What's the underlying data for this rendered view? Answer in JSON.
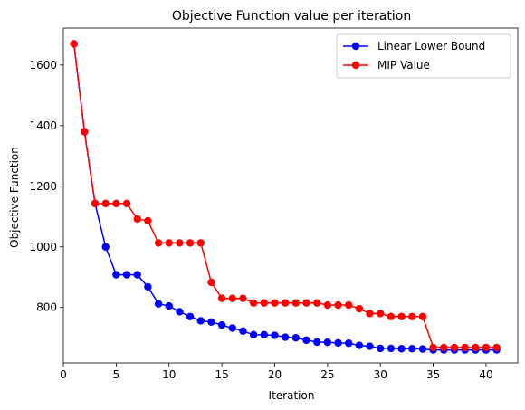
{
  "chart_data": {
    "type": "line",
    "title": "Objective Function value per iteration",
    "xlabel": "Iteration",
    "ylabel": "Objective Function",
    "xlim": [
      -0.0,
      43.0
    ],
    "ylim": [
      617,
      1722
    ],
    "xticks": [
      0,
      5,
      10,
      15,
      20,
      25,
      30,
      35,
      40
    ],
    "yticks": [
      800,
      1000,
      1200,
      1400,
      1600
    ],
    "grid": false,
    "legend_position": "top-right",
    "x": [
      1,
      2,
      3,
      4,
      5,
      6,
      7,
      8,
      9,
      10,
      11,
      12,
      13,
      14,
      15,
      16,
      17,
      18,
      19,
      20,
      21,
      22,
      23,
      24,
      25,
      26,
      27,
      28,
      29,
      30,
      31,
      32,
      33,
      34,
      35,
      36,
      37,
      38,
      39,
      40,
      41
    ],
    "series": [
      {
        "name": "Linear Lower Bound",
        "color": "#0000ff",
        "values": [
          1670,
          1380,
          1143,
          1000,
          908,
          908,
          908,
          868,
          812,
          805,
          786,
          770,
          756,
          752,
          742,
          732,
          722,
          710,
          710,
          708,
          702,
          700,
          692,
          686,
          685,
          683,
          682,
          675,
          672,
          665,
          665,
          664,
          664,
          663,
          660,
          660,
          660,
          660,
          660,
          660,
          660
        ]
      },
      {
        "name": "MIP Value",
        "color": "#ff0000",
        "values": [
          1670,
          1380,
          1143,
          1143,
          1143,
          1143,
          1092,
          1086,
          1013,
          1013,
          1013,
          1013,
          1013,
          883,
          830,
          830,
          830,
          815,
          815,
          815,
          815,
          815,
          815,
          815,
          808,
          808,
          808,
          796,
          780,
          780,
          770,
          770,
          770,
          770,
          668,
          668,
          668,
          668,
          668,
          668,
          668
        ]
      }
    ]
  }
}
